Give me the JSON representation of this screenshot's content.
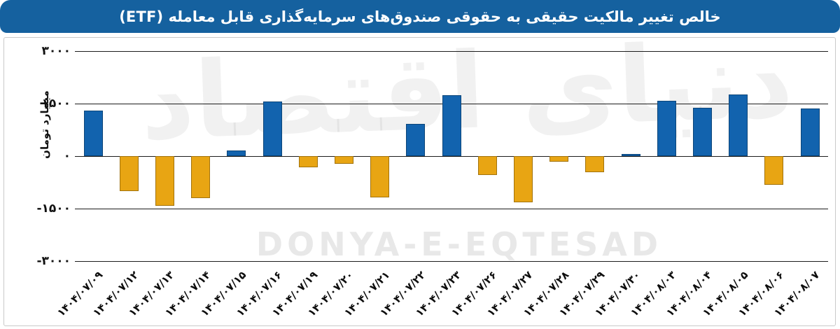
{
  "header": {
    "title": "خالص تغییر مالکیت حقیقی به حقوقی صندوق‌های سرمایه‌گذاری قابل معامله (ETF)"
  },
  "watermarks": {
    "persian_logo_text": "دنیای اقتصاد",
    "latin_text": "DONYA-E-EQTESAD"
  },
  "colors": {
    "header_bg": "#15619f",
    "positive_bar": "#1263ae",
    "negative_bar": "#e8a513",
    "gridline": "#1c1c1c",
    "panel_border": "#c9c9c9"
  },
  "chart_data": {
    "type": "bar",
    "title": "خالص تغییر مالکیت حقیقی به حقوقی صندوق‌های سرمایه‌گذاری قابل معامله (ETF)",
    "xlabel": "",
    "ylabel": "میلیارد تومان",
    "ylim": [
      -3000,
      3000
    ],
    "grid": "horizontal",
    "legend": "none",
    "yticks": [
      {
        "value": 3000,
        "label": "۳۰۰۰"
      },
      {
        "value": 1500,
        "label": "۱۵۰۰"
      },
      {
        "value": 0,
        "label": "۰"
      },
      {
        "value": -1500,
        "label": "-۱۵۰۰"
      },
      {
        "value": -3000,
        "label": "-۳۰۰۰"
      }
    ],
    "categories": [
      "۱۴۰۴/۰۷/۰۹",
      "۱۴۰۴/۰۷/۱۲",
      "۱۴۰۴/۰۷/۱۳",
      "۱۴۰۴/۰۷/۱۴",
      "۱۴۰۴/۰۷/۱۵",
      "۱۴۰۴/۰۷/۱۶",
      "۱۴۰۴/۰۷/۱۹",
      "۱۴۰۴/۰۷/۲۰",
      "۱۴۰۴/۰۷/۲۱",
      "۱۴۰۴/۰۷/۲۲",
      "۱۴۰۴/۰۷/۲۳",
      "۱۴۰۴/۰۷/۲۶",
      "۱۴۰۴/۰۷/۲۷",
      "۱۴۰۴/۰۷/۲۸",
      "۱۴۰۴/۰۷/۲۹",
      "۱۴۰۴/۰۷/۳۰",
      "۱۴۰۴/۰۸/۰۳",
      "۱۴۰۴/۰۸/۰۴",
      "۱۴۰۴/۰۸/۰۵",
      "۱۴۰۴/۰۸/۰۶",
      "۱۴۰۴/۰۸/۰۷"
    ],
    "values": [
      1300,
      -990,
      -1420,
      -1190,
      170,
      1570,
      -310,
      -220,
      -1170,
      930,
      1740,
      -530,
      -1320,
      -150,
      -460,
      60,
      1580,
      1380,
      1760,
      -820,
      1370
    ],
    "series_note": "positive values rendered blue, negative values rendered gold"
  }
}
